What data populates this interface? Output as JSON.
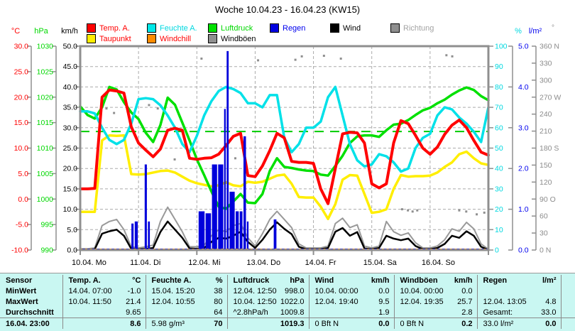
{
  "title": "Woche 10.04.23 - 16.04.23 (KW15)",
  "legend": {
    "items": [
      {
        "id": "temp-a",
        "label": "Temp. A.",
        "color": "#ff0000",
        "text_color": "#ff0000"
      },
      {
        "id": "feuchte-a",
        "label": "Feuchte A.",
        "color": "#00e8e8",
        "text_color": "#00d8e0"
      },
      {
        "id": "luftdruck",
        "label": "Luftdruck",
        "color": "#00e000",
        "text_color": "#00d800"
      },
      {
        "id": "regen",
        "label": "Regen",
        "color": "#0000e0",
        "text_color": "#0000ee"
      },
      {
        "id": "wind",
        "label": "Wind",
        "color": "#000000",
        "text_color": "#000000"
      },
      {
        "id": "richtung",
        "label": "Richtung",
        "color": "#8f8f8f",
        "text_color": "#a3a3a3"
      },
      {
        "id": "taupunkt",
        "label": "Taupunkt",
        "color": "#ffee00",
        "text_color": "#ff0000"
      },
      {
        "id": "windchill",
        "label": "Windchill",
        "color": "#ff8c00",
        "text_color": "#ff0000"
      },
      {
        "id": "windboeen",
        "label": "Windböen",
        "color": "#8f8f8f",
        "text_color": "#000000"
      }
    ]
  },
  "unit_headers": [
    {
      "id": "temp",
      "label": "°C",
      "color": "#ff0000"
    },
    {
      "id": "press",
      "label": "hPa",
      "color": "#00d800"
    },
    {
      "id": "windspeed",
      "label": "km/h",
      "color": "#000000"
    },
    {
      "id": "hum",
      "label": "%",
      "color": "#00d8e0"
    },
    {
      "id": "rain",
      "label": "l/m²",
      "color": "#0000ee"
    },
    {
      "id": "dir",
      "label": "°",
      "color": "#8c8c8c"
    }
  ],
  "axes": {
    "temp": {
      "color": "#ff0000",
      "ticks": [
        "30.0",
        "25.0",
        "20.0",
        "15.0",
        "10.0",
        "5.0",
        "0.0",
        "-5.0",
        "-10.0"
      ]
    },
    "press": {
      "color": "#00d800",
      "ticks": [
        "1030",
        "1025",
        "1020",
        "1015",
        "1010",
        "1005",
        "1000",
        "995",
        "990"
      ]
    },
    "kmh": {
      "color": "#000000",
      "ticks": [
        "50.0",
        "45.0",
        "40.0",
        "35.0",
        "30.0",
        "25.0",
        "20.0",
        "15.0",
        "10.0",
        "5.0",
        "0.0"
      ]
    },
    "pct": {
      "color": "#00d8e0",
      "ticks": [
        "100",
        "90",
        "80",
        "70",
        "60",
        "50",
        "40",
        "30",
        "20",
        "10",
        "0"
      ]
    },
    "lm2": {
      "color": "#0000ee",
      "ticks": [
        "5.0",
        "4.0",
        "3.0",
        "2.0",
        "1.0",
        "0.0"
      ]
    },
    "dir": {
      "color": "#8c8c8c",
      "ticks": [
        "360 N",
        "330",
        "300",
        "270 W",
        "240",
        "210",
        "180 S",
        "150",
        "120",
        "90 O",
        "60",
        "30",
        "0 N"
      ]
    }
  },
  "x_axis": {
    "labels": [
      "10.04. Mo",
      "11.04. Di",
      "12.04. Mi",
      "13.04. Do",
      "14.04. Fr",
      "15.04. Sa",
      "16.04. So"
    ]
  },
  "chart_data": {
    "type": "line",
    "x_mode": "week, samples every 3 h from 10.04. 00:00 to 16.04. 23:00",
    "step_hours": 3,
    "axis_ranges": {
      "temp": [
        -10,
        30
      ],
      "press": [
        990,
        1030
      ],
      "kmh": [
        0,
        50
      ],
      "pct": [
        0,
        100
      ],
      "rain": [
        0,
        5
      ],
      "dir": [
        0,
        360
      ]
    },
    "grid": {
      "h_step_kmh": 5,
      "v_step_days": 1,
      "color": "#ababab"
    },
    "ref_line": {
      "axis": "press",
      "value": 1013.25,
      "color": "#00cc00"
    },
    "rain_color": "#0000db",
    "baseline": {
      "rain_zero_color": "#0000db",
      "minor_tick_color": "#ff8c00"
    },
    "series": [
      {
        "name": "Windböen",
        "axis": "kmh",
        "color": "#999999",
        "width": 2,
        "values": [
          0.3,
          0.3,
          0.5,
          6,
          7,
          7.5,
          5,
          0.8,
          0.5,
          0.8,
          1.2,
          7,
          10.5,
          7.5,
          4.5,
          0.8,
          0.8,
          1.2,
          3.5,
          5,
          4.5,
          6,
          6.5,
          3,
          1,
          4,
          7.5,
          9.5,
          7.5,
          5.5,
          1.5,
          0.5,
          0.5,
          0.5,
          1,
          6.5,
          7.8,
          5.5,
          6.2,
          1,
          0.5,
          1,
          7,
          4.5,
          3.6,
          4.2,
          1.8,
          0.5,
          0.5,
          1,
          2.5,
          5.2,
          4.6,
          6.8,
          5.2,
          1.5,
          0.2
        ]
      },
      {
        "name": "Wind",
        "axis": "kmh",
        "color": "#000000",
        "width": 2.5,
        "values": [
          0.1,
          0.1,
          0.2,
          4,
          4.6,
          5,
          3.5,
          0.3,
          0.2,
          0.3,
          0.5,
          4.4,
          7,
          5,
          3,
          0.4,
          0.3,
          0.5,
          2,
          3,
          2.8,
          3.5,
          4.5,
          2,
          0.5,
          2.5,
          5,
          6.8,
          5.2,
          3.9,
          0.8,
          0.2,
          0.2,
          0.2,
          0.5,
          4.5,
          5.4,
          3.5,
          4.4,
          0.4,
          0.2,
          0.5,
          3.5,
          2.8,
          2.4,
          2.8,
          1,
          0.2,
          0.2,
          0.5,
          1.5,
          3.5,
          3,
          4.6,
          3.5,
          0.8,
          0
        ]
      },
      {
        "name": "Taupunkt",
        "axis": "temp",
        "color": "#ffee00",
        "width": 3.5,
        "values": [
          -2.5,
          -2.5,
          -2.5,
          11.5,
          12.5,
          12.4,
          12.5,
          4.9,
          4.8,
          4.9,
          5.2,
          5.5,
          5.6,
          5.2,
          4.4,
          3.6,
          3.1,
          2.8,
          2.5,
          2.7,
          3.3,
          2.7,
          2.5,
          3.4,
          3.2,
          3.4,
          4,
          4.6,
          4.8,
          3,
          0.4,
          0.3,
          0.3,
          -1.5,
          -3.9,
          -1,
          3.8,
          4.7,
          4.6,
          1,
          -2.7,
          -2.5,
          -2,
          2,
          4.7,
          4.4,
          4.5,
          4.5,
          4.6,
          5.2,
          6.3,
          7.2,
          8.8,
          9.3,
          8,
          7,
          6.7
        ]
      },
      {
        "name": "Luftdruck",
        "axis": "press",
        "color": "#00e000",
        "width": 3.5,
        "values": [
          1018.2,
          1016.5,
          1015.8,
          1018,
          1022,
          1021.5,
          1019,
          1017,
          1015.7,
          1013,
          1011.2,
          1014.5,
          1019.9,
          1018.5,
          1015,
          1011.5,
          1007.8,
          1004.7,
          1001.5,
          998.5,
          998.1,
          999.5,
          1001,
          999.3,
          999.2,
          1001,
          1005.5,
          1008,
          1006.3,
          1006.1,
          1005.8,
          1005.6,
          1005.5,
          1004.8,
          1004.6,
          1006.5,
          1008.5,
          1011,
          1012.3,
          1012.5,
          1012.5,
          1012.2,
          1013.5,
          1014.6,
          1014.8,
          1015.5,
          1016.5,
          1017.4,
          1017.9,
          1018.8,
          1019.5,
          1020.5,
          1021.3,
          1021.9,
          1021.4,
          1020.2,
          1019.4
        ]
      },
      {
        "name": "Feuchte A.",
        "axis": "pct",
        "color": "#00e1e8",
        "width": 3.5,
        "values": [
          68,
          68,
          67,
          60,
          54,
          52,
          54,
          62,
          74,
          74.5,
          74,
          71,
          66,
          60,
          52,
          48,
          56,
          66,
          73,
          78,
          80,
          79,
          77,
          72,
          72,
          70,
          76,
          76,
          55,
          48,
          52,
          60,
          60,
          63,
          75,
          80,
          66,
          52,
          44,
          41,
          42,
          47,
          46,
          43,
          38.5,
          40,
          50,
          55,
          57,
          66,
          70,
          69,
          65,
          62,
          58,
          53,
          70
        ]
      },
      {
        "name": "Temp. A.",
        "axis": "temp",
        "color": "#ff0000",
        "width": 4,
        "values": [
          2,
          2,
          2.1,
          20,
          21.4,
          21.2,
          20.8,
          14.2,
          11,
          9.6,
          8.3,
          9.8,
          13.5,
          13.9,
          13.5,
          8,
          7.8,
          8,
          8.1,
          8.8,
          10.5,
          12.3,
          12.9,
          4.6,
          4.4,
          6.5,
          9.5,
          12.9,
          12,
          7.4,
          7.2,
          7.2,
          7,
          2,
          -0.9,
          6,
          12.8,
          13.1,
          13,
          11,
          3,
          2.2,
          3,
          11,
          15.4,
          14.8,
          12.5,
          10,
          8.8,
          10.2,
          12.7,
          14.5,
          15.5,
          14,
          11.5,
          9.2,
          8.6
        ]
      }
    ],
    "rain_bars_day_x_w_lm2": [
      [
        0.878,
        0.05,
        0.65
      ],
      [
        0.935,
        0.065,
        0.7
      ],
      [
        1.105,
        0.05,
        2.1
      ],
      [
        1.162,
        0.045,
        0.7
      ],
      [
        2.03,
        0.115,
        0.95
      ],
      [
        2.15,
        0.105,
        0.9
      ],
      [
        2.26,
        0.1,
        2.1
      ],
      [
        2.365,
        0.1,
        2.1
      ],
      [
        2.468,
        0.04,
        3.46
      ],
      [
        2.512,
        0.046,
        4.88
      ],
      [
        2.562,
        0.1,
        1.43
      ],
      [
        2.666,
        0.065,
        0.95
      ],
      [
        2.735,
        0.06,
        0.95
      ],
      [
        2.8,
        0.055,
        2.79
      ],
      [
        2.858,
        0.04,
        0.7
      ],
      [
        3.318,
        0.058,
        0.75
      ]
    ],
    "direction_dots_day_deg": [
      [
        0.45,
        250
      ],
      [
        0.58,
        242
      ],
      [
        1.18,
        256
      ],
      [
        1.33,
        250
      ],
      [
        1.62,
        160
      ],
      [
        2.08,
        338
      ],
      [
        2.66,
        162
      ],
      [
        3.05,
        335
      ],
      [
        3.69,
        336
      ],
      [
        3.8,
        342
      ],
      [
        4.18,
        343
      ],
      [
        4.47,
        338
      ],
      [
        5.52,
        72
      ],
      [
        5.62,
        70
      ],
      [
        5.7,
        68
      ],
      [
        5.78,
        70
      ],
      [
        6.28,
        344
      ],
      [
        6.38,
        342
      ],
      [
        6.5,
        70
      ],
      [
        6.62,
        68
      ],
      [
        6.8,
        63
      ],
      [
        6.93,
        66
      ]
    ]
  },
  "table": {
    "col_headers": [
      {
        "label": "Sensor",
        "unit": ""
      },
      {
        "label": "Temp. A.",
        "unit": "°C"
      },
      {
        "label": "Feuchte A.",
        "unit": "%"
      },
      {
        "label": "Luftdruck",
        "unit": "hPa"
      },
      {
        "label": "Wind",
        "unit": "km/h"
      },
      {
        "label": "Windböen",
        "unit": "km/h"
      },
      {
        "label": "Regen",
        "unit": "l/m²"
      }
    ],
    "rows": [
      {
        "label": "MinWert",
        "cells": [
          [
            "14.04.  07:00",
            "-1.0"
          ],
          [
            "15.04.  15:20",
            "38"
          ],
          [
            "12.04.  12:50",
            "998.0"
          ],
          [
            "10.04.  00:00",
            "0.0"
          ],
          [
            "10.04.  00:00",
            "0.0"
          ],
          [
            "",
            ""
          ]
        ]
      },
      {
        "label": "MaxWert",
        "cells": [
          [
            "10.04.  11:50",
            "21.4"
          ],
          [
            "12.04.  10:55",
            "80"
          ],
          [
            "10.04.  12:50",
            "1022.0"
          ],
          [
            "12.04.  19:40",
            "9.5"
          ],
          [
            "12.04.  19:35",
            "25.7"
          ],
          [
            "12.04.  13:05",
            "4.8"
          ]
        ]
      },
      {
        "label": "Durchschnitt",
        "cells": [
          [
            "",
            "9.65"
          ],
          [
            "",
            "64"
          ],
          [
            "^2.8hPa/h",
            "1009.8"
          ],
          [
            "",
            "1.9"
          ],
          [
            "",
            "2.8"
          ],
          [
            "Gesamt:",
            "33.0"
          ]
        ]
      },
      {
        "label": "16.04. 23:00",
        "cells": [
          [
            "",
            "8.6"
          ],
          [
            "5.98 g/m³",
            "70"
          ],
          [
            "",
            "1019.3"
          ],
          [
            "0 Bft N",
            "0.0"
          ],
          [
            "0 Bft N",
            "0.2"
          ],
          [
            "33.0 l/m²",
            "0.0"
          ]
        ]
      }
    ]
  }
}
